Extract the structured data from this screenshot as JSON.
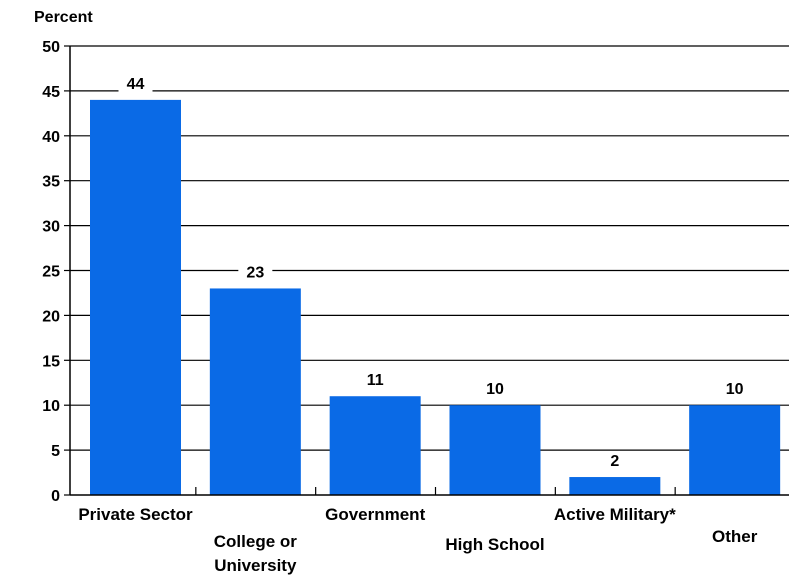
{
  "chart_data": {
    "type": "bar",
    "ylabel": "Percent",
    "xlabel": "",
    "title": "",
    "ylim": [
      0,
      50
    ],
    "yticks": [
      0,
      5,
      10,
      15,
      20,
      25,
      30,
      35,
      40,
      45,
      50
    ],
    "grid": true,
    "bar_color": "#0a6ae6",
    "categories": [
      [
        "Private Sector"
      ],
      [
        "College or",
        "University"
      ],
      [
        "Government"
      ],
      [
        "High School"
      ],
      [
        "Active Military*"
      ],
      [
        "Other"
      ]
    ],
    "values": [
      44,
      23,
      11,
      10,
      2,
      10
    ],
    "data_labels": [
      "44",
      "23",
      "11",
      "10",
      "2",
      "10"
    ]
  }
}
